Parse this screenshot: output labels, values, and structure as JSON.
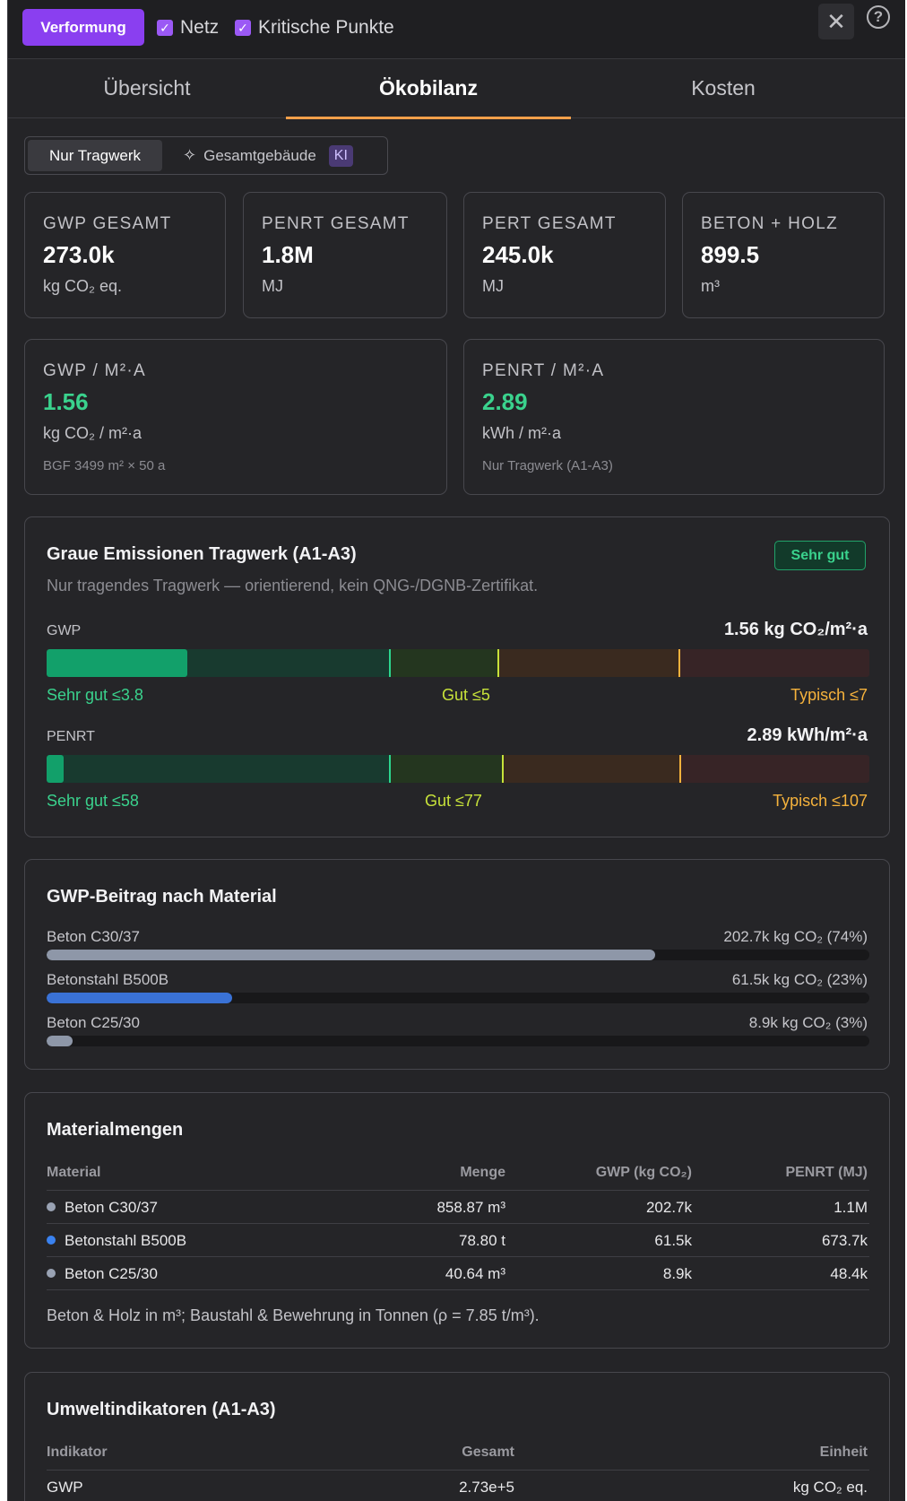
{
  "toolbar": {
    "verformung_label": "Verformung",
    "netz_label": "Netz",
    "kritische_label": "Kritische Punkte",
    "close_icon": "close-icon",
    "help_icon": "help-icon"
  },
  "tabs": [
    {
      "label": "Übersicht"
    },
    {
      "label": "Ökobilanz"
    },
    {
      "label": "Kosten"
    }
  ],
  "scope_toggle": {
    "option_a": "Nur Tragwerk",
    "option_b": "Gesamtgebäude",
    "badge": "KI"
  },
  "stats": [
    {
      "label": "GWP GESAMT",
      "value": "273.0k",
      "unit": "kg CO₂ eq."
    },
    {
      "label": "PENRT GESAMT",
      "value": "1.8M",
      "unit": "MJ"
    },
    {
      "label": "PERT GESAMT",
      "value": "245.0k",
      "unit": "MJ"
    },
    {
      "label": "BETON + HOLZ",
      "value": "899.5",
      "unit": "m³"
    }
  ],
  "intensity": [
    {
      "label": "GWP / M²·A",
      "value": "1.56",
      "unit": "kg CO₂ / m²·a",
      "sub": "BGF 3499 m² × 50 a"
    },
    {
      "label": "PENRT / M²·A",
      "value": "2.89",
      "unit": "kWh / m²·a",
      "sub": "Nur Tragwerk (A1-A3)"
    }
  ],
  "rating": {
    "title": "Graue Emissionen Tragwerk (A1-A3)",
    "badge": "Sehr gut",
    "subtitle": "Nur tragendes Tragwerk — orientierend, kein QNG-/DGNB-Zertifikat.",
    "gwp": {
      "label": "GWP",
      "value_text": "1.56 kg CO₂/m²·a",
      "value": 1.56,
      "max": 9.1,
      "t1": 3.8,
      "t2": 5,
      "t3": 7,
      "t1_label": "Sehr gut ≤3.8",
      "t2_label": "Gut ≤5",
      "t3_label": "Typisch ≤7"
    },
    "penrt": {
      "label": "PENRT",
      "value_text": "2.89 kWh/m²·a",
      "value": 2.89,
      "max": 139,
      "t1": 58,
      "t2": 77,
      "t3": 107,
      "t1_label": "Sehr gut ≤58",
      "t2_label": "Gut ≤77",
      "t3_label": "Typisch ≤107"
    }
  },
  "materials_gwp": {
    "title": "GWP-Beitrag nach Material",
    "items": [
      {
        "name": "Beton C30/37",
        "value_text": "202.7k kg CO₂ (74%)",
        "share": 0.74,
        "color": "#8e97a8"
      },
      {
        "name": "Betonstahl B500B",
        "value_text": "61.5k kg CO₂ (23%)",
        "share": 0.225,
        "color": "#3a72d6"
      },
      {
        "name": "Beton C25/30",
        "value_text": "8.9k kg CO₂ (3%)",
        "share": 0.032,
        "color": "#8e97a8"
      }
    ]
  },
  "quantities": {
    "title": "Materialmengen",
    "headers": [
      "Material",
      "Menge",
      "GWP (kg CO₂)",
      "PENRT (MJ)"
    ],
    "rows": [
      {
        "material": "Beton C30/37",
        "menge": "858.87 m³",
        "gwp": "202.7k",
        "penrt": "1.1M",
        "color": "#9aa3b4"
      },
      {
        "material": "Betonstahl B500B",
        "menge": "78.80 t",
        "gwp": "61.5k",
        "penrt": "673.7k",
        "color": "#3a82f0"
      },
      {
        "material": "Beton C25/30",
        "menge": "40.64 m³",
        "gwp": "8.9k",
        "penrt": "48.4k",
        "color": "#9aa3b4"
      }
    ],
    "note": "Beton & Holz in m³; Baustahl & Bewehrung in Tonnen (ρ = 7.85 t/m³)."
  },
  "indicators": {
    "title": "Umweltindikatoren (A1-A3)",
    "headers": [
      "Indikator",
      "Gesamt",
      "Einheit"
    ],
    "rows": [
      {
        "indikator": "GWP",
        "gesamt": "2.73e+5",
        "einheit": "kg CO₂ eq."
      }
    ]
  }
}
